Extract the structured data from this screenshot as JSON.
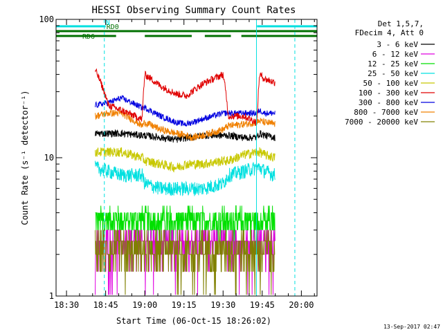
{
  "chart_data": {
    "type": "line",
    "title": "HESSI Observing Summary Count Rates",
    "xlabel": "Start Time (06-Oct-15 18:26:02)",
    "ylabel": "Count Rate (s⁻¹ detector⁻¹)",
    "x_ticks": [
      "18:30",
      "18:45",
      "19:00",
      "19:15",
      "19:30",
      "19:45",
      "20:00"
    ],
    "x_tick_minutes": [
      4,
      19,
      34,
      49,
      64,
      79,
      94
    ],
    "x_range_minutes": [
      0,
      100
    ],
    "y_scale": "log",
    "y_range": [
      1,
      100
    ],
    "y_ticks": [
      "1",
      "10",
      "100"
    ],
    "y_tick_values": [
      1,
      10,
      100
    ],
    "legend_header": [
      "Det 1,5,7,",
      "FDecim 4, Att 0"
    ],
    "legend_position": "right",
    "footer_timestamp": "13-Sep-2017 02:47",
    "flags": [
      {
        "name": "RD6",
        "color": "#007000",
        "level": 2,
        "segments": [
          [
            0,
            23
          ],
          [
            34,
            52
          ],
          [
            57,
            67
          ],
          [
            71,
            100
          ]
        ]
      },
      {
        "name": "RD0",
        "color": "#007000",
        "level": 1,
        "segments": [
          [
            0,
            100
          ]
        ]
      },
      {
        "name": "N",
        "color": "#00E0E0",
        "level": 0,
        "segments": [
          [
            0,
            19
          ],
          [
            77,
            100
          ]
        ]
      }
    ],
    "vertical_lines": [
      {
        "minute": 0,
        "style": "solid",
        "color": "#00E0E0"
      },
      {
        "minute": 18.5,
        "style": "dashed",
        "color": "#00E0E0"
      },
      {
        "minute": 76.8,
        "style": "solid",
        "color": "#00E0E0"
      },
      {
        "minute": 91.5,
        "style": "dashed",
        "color": "#00E0E0"
      }
    ],
    "series_profile_minutes": [
      15,
      20,
      25,
      33,
      34,
      40,
      46,
      50,
      52,
      56,
      64,
      66,
      72,
      77,
      78,
      80,
      84
    ],
    "series": [
      {
        "name": "3 - 6 keV",
        "color": "#000000",
        "noise": 0.06,
        "values": [
          15,
          15,
          15,
          14.5,
          14.5,
          14,
          13.5,
          14,
          14,
          14.5,
          14.5,
          14.5,
          14,
          14,
          15,
          14.5,
          14
        ]
      },
      {
        "name": "6 - 12 keV",
        "color": "#E000E0",
        "noise": 0.18,
        "values": [
          2.5,
          2.5,
          2.5,
          2.5,
          2.5,
          2.5,
          2.5,
          2.5,
          2.5,
          2.5,
          2.5,
          2.5,
          2.5,
          2.5,
          2.5,
          2.5,
          2.5
        ]
      },
      {
        "name": "12 - 25 keV",
        "color": "#00E000",
        "noise": 0.2,
        "values": [
          3.6,
          3.6,
          3.6,
          3.6,
          3.6,
          3.6,
          3.6,
          3.6,
          3.6,
          3.6,
          3.6,
          3.6,
          3.6,
          3.6,
          3.6,
          3.6,
          3.6
        ]
      },
      {
        "name": "25 - 50 keV",
        "color": "#00E0E0",
        "noise": 0.12,
        "values": [
          8.5,
          8,
          7.5,
          7.5,
          6.5,
          6,
          6,
          6,
          6,
          6,
          6.5,
          7.5,
          8,
          8.5,
          8.5,
          8,
          7.5
        ]
      },
      {
        "name": "50 - 100 keV",
        "color": "#C8C800",
        "noise": 0.08,
        "values": [
          11,
          11,
          11,
          10,
          9.5,
          9,
          8.5,
          9,
          9,
          9,
          9.5,
          9.5,
          10.5,
          11,
          11,
          10.5,
          10
        ]
      },
      {
        "name": "100 - 300 keV",
        "color": "#E00000",
        "noise": 0.06,
        "values": [
          43,
          24,
          22,
          19,
          40,
          33,
          29,
          28,
          30,
          34,
          40,
          20,
          20,
          18,
          40,
          37,
          35
        ]
      },
      {
        "name": "300 - 800 keV",
        "color": "#0000E0",
        "noise": 0.05,
        "values": [
          24,
          25,
          27,
          23,
          23,
          20,
          18,
          17.5,
          18,
          19,
          21,
          21,
          21,
          21,
          22,
          21,
          21
        ]
      },
      {
        "name": "800 - 7000 keV",
        "color": "#F08000",
        "noise": 0.06,
        "values": [
          20,
          21,
          21,
          17,
          18,
          16,
          15,
          14.5,
          14,
          14.5,
          16,
          17,
          17.5,
          18,
          18.5,
          18,
          17.5
        ]
      },
      {
        "name": "7000 - 20000 keV",
        "color": "#808000",
        "noise": 0.3,
        "values": [
          2.2,
          2.2,
          2.2,
          2.2,
          2.2,
          2.2,
          2.2,
          2.2,
          2.2,
          2.2,
          2.2,
          2.2,
          2.2,
          2.2,
          2.2,
          2.2,
          2.2
        ]
      }
    ]
  }
}
